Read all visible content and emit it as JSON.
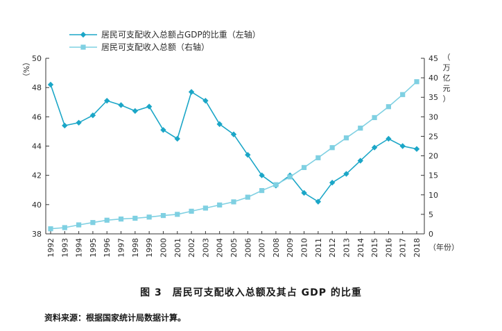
{
  "chart_data": {
    "type": "line",
    "title": "图 3　居民可支配收入总额及其占 GDP 的比重",
    "source": "资料来源：根据国家统计局数据计算。",
    "x": [
      1992,
      1993,
      1994,
      1995,
      1996,
      1997,
      1998,
      1999,
      2000,
      2001,
      2002,
      2003,
      2004,
      2005,
      2006,
      2007,
      2008,
      2009,
      2010,
      2011,
      2012,
      2013,
      2014,
      2015,
      2016,
      2017,
      2018
    ],
    "x_tick_labels": [
      "1992",
      "1993",
      "1994",
      "1995",
      "1996",
      "1997",
      "1998",
      "1999",
      "2000",
      "2001",
      "2002",
      "2003",
      "2004",
      "2005",
      "2006",
      "2007",
      "2008",
      "2009",
      "2010",
      "2011",
      "2012",
      "2013",
      "2014",
      "2015",
      "2016",
      "2017",
      "2018"
    ],
    "xlabel": "（年份）",
    "y_left": {
      "label": "（%）",
      "ylim": [
        38,
        50
      ],
      "ticks": [
        38,
        40,
        42,
        44,
        46,
        48,
        50
      ]
    },
    "y_right": {
      "label": "（万亿元）",
      "ylim": [
        0,
        45
      ],
      "ticks": [
        0,
        5,
        10,
        15,
        20,
        25,
        30,
        35,
        40,
        45
      ]
    },
    "grid": false,
    "legend_position": "top-left",
    "series": [
      {
        "name": "居民可支配收入总额占GDP的比重（左轴）",
        "axis": "left",
        "marker": "diamond",
        "color": "#1ba6c7",
        "values": [
          48.2,
          45.4,
          45.6,
          46.1,
          47.1,
          46.8,
          46.4,
          46.7,
          45.1,
          44.5,
          47.7,
          47.1,
          45.5,
          44.8,
          43.4,
          42.0,
          41.3,
          42.0,
          40.8,
          40.2,
          41.5,
          42.1,
          43.0,
          43.9,
          44.5,
          44.0,
          43.8
        ]
      },
      {
        "name": "居民可支配收入总额（右轴）",
        "axis": "right",
        "marker": "square",
        "color": "#7fd0e2",
        "values": [
          1.3,
          1.6,
          2.3,
          2.9,
          3.5,
          3.8,
          4.0,
          4.3,
          4.7,
          5.0,
          5.8,
          6.6,
          7.4,
          8.2,
          9.4,
          11.1,
          12.6,
          14.6,
          17.0,
          19.5,
          22.1,
          24.6,
          27.1,
          29.8,
          32.6,
          35.7,
          39.0
        ]
      }
    ]
  }
}
